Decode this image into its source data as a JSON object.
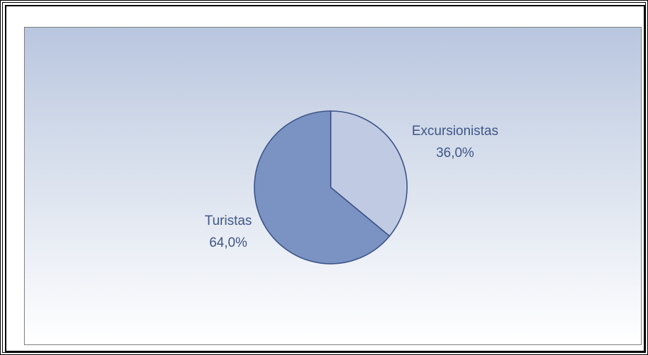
{
  "chart_data": {
    "type": "pie",
    "slices": [
      {
        "label": "Excursionistas",
        "value": 36.0,
        "value_label": "36,0%",
        "color": "#c0cae3"
      },
      {
        "label": "Turistas",
        "value": 64.0,
        "value_label": "64,0%",
        "color": "#7a93c3"
      }
    ],
    "title": "",
    "legend": "none",
    "colors": {
      "slice_border": "#3d5488",
      "label_text": "#3f5687",
      "background_top": "#b9c6df",
      "background_bottom": "#ffffff"
    }
  }
}
